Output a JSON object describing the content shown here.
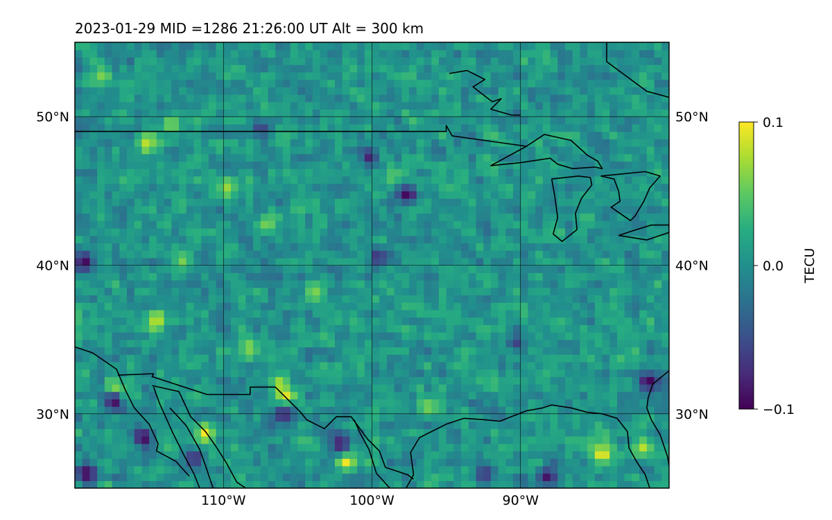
{
  "chart_data": {
    "type": "heatmap",
    "title": "2023-01-29  MID =1286    21:26:00  UT  Alt = 300 km",
    "xlabel": "",
    "ylabel": "",
    "xlim": [
      -120,
      -80
    ],
    "ylim": [
      25,
      55
    ],
    "x_ticks": [
      {
        "value": -110,
        "label": "110°W"
      },
      {
        "value": -100,
        "label": "100°W"
      },
      {
        "value": -90,
        "label": "90°W"
      }
    ],
    "y_ticks": [
      {
        "value": 30,
        "label": "30°N"
      },
      {
        "value": 40,
        "label": "40°N"
      },
      {
        "value": 50,
        "label": "50°N"
      }
    ],
    "grid": true,
    "colorbar": {
      "label": "TECU",
      "min": -0.1,
      "max": 0.1,
      "ticks": [
        {
          "value": 0.1,
          "label": "0.1"
        },
        {
          "value": 0.0,
          "label": "0.0"
        },
        {
          "value": -0.1,
          "label": "−0.1"
        }
      ],
      "colormap": [
        "#440154",
        "#472c7a",
        "#3b518b",
        "#2c718e",
        "#21908d",
        "#27ad81",
        "#5cc863",
        "#aadc32",
        "#fde725"
      ]
    },
    "grid_resolution_deg": 0.5,
    "hotspots": [
      {
        "lon": -117.3,
        "lat": 31.6,
        "value": 0.1
      },
      {
        "lon": -114.5,
        "lat": 36.4,
        "value": 0.09
      },
      {
        "lon": -111.2,
        "lat": 28.7,
        "value": 0.1
      },
      {
        "lon": -105.8,
        "lat": 31.1,
        "value": 0.1
      },
      {
        "lon": -106.2,
        "lat": 32.0,
        "value": 0.08
      },
      {
        "lon": -101.7,
        "lat": 26.9,
        "value": 0.1
      },
      {
        "lon": -84.5,
        "lat": 27.3,
        "value": 0.1
      },
      {
        "lon": -109.8,
        "lat": 45.2,
        "value": 0.07
      },
      {
        "lon": -115.2,
        "lat": 48.2,
        "value": 0.08
      },
      {
        "lon": -113.5,
        "lat": 49.5,
        "value": 0.07
      },
      {
        "lon": -108.3,
        "lat": 34.5,
        "value": 0.07
      },
      {
        "lon": -118.2,
        "lat": 52.8,
        "value": 0.06
      },
      {
        "lon": -112.8,
        "lat": 40.2,
        "value": 0.06
      },
      {
        "lon": -81.7,
        "lat": 27.8,
        "value": 0.08
      },
      {
        "lon": -96.2,
        "lat": 30.5,
        "value": 0.06
      },
      {
        "lon": -107.0,
        "lat": 42.8,
        "value": 0.06
      },
      {
        "lon": -103.8,
        "lat": 38.2,
        "value": 0.06
      },
      {
        "lon": -98.5,
        "lat": 46.0,
        "value": 0.05
      }
    ],
    "coldspots": [
      {
        "lon": -119.4,
        "lat": 40.2,
        "value": -0.1
      },
      {
        "lon": -115.4,
        "lat": 28.4,
        "value": -0.1
      },
      {
        "lon": -117.4,
        "lat": 30.9,
        "value": -0.1
      },
      {
        "lon": -119.2,
        "lat": 26.0,
        "value": -0.1
      },
      {
        "lon": -102.1,
        "lat": 28.0,
        "value": -0.09
      },
      {
        "lon": -106.0,
        "lat": 30.0,
        "value": -0.08
      },
      {
        "lon": -97.6,
        "lat": 44.8,
        "value": -0.1
      },
      {
        "lon": -100.2,
        "lat": 47.3,
        "value": -0.08
      },
      {
        "lon": -81.4,
        "lat": 32.2,
        "value": -0.1
      },
      {
        "lon": -88.2,
        "lat": 25.8,
        "value": -0.09
      },
      {
        "lon": -92.4,
        "lat": 26.0,
        "value": -0.07
      },
      {
        "lon": -112.0,
        "lat": 27.0,
        "value": -0.08
      },
      {
        "lon": -99.6,
        "lat": 40.6,
        "value": -0.07
      },
      {
        "lon": -107.5,
        "lat": 49.2,
        "value": -0.06
      },
      {
        "lon": -90.3,
        "lat": 34.8,
        "value": -0.06
      }
    ],
    "boundaries": {
      "us_canada_border": [
        [
          -120,
          49
        ],
        [
          -95,
          49
        ],
        [
          -95,
          49.4
        ],
        [
          -94.6,
          48.7
        ],
        [
          -89.6,
          48.0
        ]
      ],
      "hudson_bay_coast": [
        [
          -94.8,
          52.9
        ],
        [
          -93.6,
          53.1
        ],
        [
          -92.4,
          52.5
        ],
        [
          -93.2,
          52.0
        ],
        [
          -91.9,
          51.0
        ],
        [
          -91.3,
          51.2
        ],
        [
          -92.0,
          50.5
        ],
        [
          -90.6,
          50.1
        ],
        [
          -90.0,
          50.1
        ]
      ],
      "quebec_border": [
        [
          -84.2,
          55
        ],
        [
          -84.2,
          53.7
        ],
        [
          -81.5,
          51.7
        ],
        [
          -80,
          51.3
        ]
      ],
      "lake_superior": [
        [
          -89.6,
          48.0
        ],
        [
          -92.0,
          46.7
        ],
        [
          -90.0,
          46.9
        ],
        [
          -88.0,
          47.2
        ],
        [
          -87.5,
          46.8
        ],
        [
          -86.5,
          46.5
        ],
        [
          -85.0,
          46.6
        ],
        [
          -84.5,
          46.5
        ],
        [
          -84.8,
          47.0
        ],
        [
          -85.5,
          47.4
        ],
        [
          -86.6,
          48.4
        ],
        [
          -88.4,
          48.8
        ],
        [
          -89.6,
          48.0
        ]
      ],
      "lake_michigan": [
        [
          -87.9,
          45.8
        ],
        [
          -87.7,
          44.7
        ],
        [
          -87.5,
          43.2
        ],
        [
          -87.8,
          42.1
        ],
        [
          -87.2,
          41.6
        ],
        [
          -86.2,
          42.4
        ],
        [
          -86.3,
          43.5
        ],
        [
          -85.9,
          44.5
        ],
        [
          -85.2,
          45.4
        ],
        [
          -85.3,
          45.9
        ],
        [
          -86.1,
          46.0
        ],
        [
          -87.9,
          45.8
        ]
      ],
      "lake_huron": [
        [
          -84.6,
          46.0
        ],
        [
          -83.7,
          45.8
        ],
        [
          -83.4,
          45.0
        ],
        [
          -83.3,
          44.3
        ],
        [
          -83.9,
          43.9
        ],
        [
          -82.6,
          43.0
        ],
        [
          -82.3,
          43.3
        ],
        [
          -81.7,
          44.3
        ],
        [
          -81.3,
          45.2
        ],
        [
          -80.6,
          46.0
        ],
        [
          -81.6,
          46.3
        ],
        [
          -84.6,
          46.0
        ]
      ],
      "lake_erie": [
        [
          -83.4,
          42.0
        ],
        [
          -81.5,
          41.7
        ],
        [
          -80,
          42.2
        ],
        [
          -80,
          42.7
        ],
        [
          -81.2,
          42.7
        ],
        [
          -82.5,
          42.3
        ],
        [
          -83.4,
          42.0
        ]
      ],
      "us_mexico_border": [
        [
          -117.1,
          32.6
        ],
        [
          -114.7,
          32.7
        ],
        [
          -114.8,
          32.5
        ],
        [
          -111.1,
          31.3
        ],
        [
          -108.2,
          31.3
        ],
        [
          -108.2,
          31.8
        ],
        [
          -106.5,
          31.8
        ],
        [
          -104.8,
          30.1
        ],
        [
          -104.4,
          29.6
        ],
        [
          -103.2,
          29.0
        ],
        [
          -102.4,
          29.8
        ],
        [
          -101.4,
          29.8
        ],
        [
          -100.3,
          28.3
        ],
        [
          -99.5,
          27.5
        ],
        [
          -99.1,
          26.4
        ],
        [
          -97.6,
          25.9
        ],
        [
          -97.2,
          25.6
        ]
      ],
      "gulf_coast": [
        [
          -97.7,
          25
        ],
        [
          -97.2,
          25.9
        ],
        [
          -97.4,
          27.4
        ],
        [
          -96.8,
          28.4
        ],
        [
          -95.0,
          29.3
        ],
        [
          -93.8,
          29.7
        ],
        [
          -92.4,
          29.6
        ],
        [
          -91.4,
          29.5
        ],
        [
          -89.6,
          30.2
        ],
        [
          -88.5,
          30.4
        ],
        [
          -87.9,
          30.6
        ],
        [
          -86.6,
          30.4
        ],
        [
          -85.5,
          30.1
        ],
        [
          -84.5,
          30.0
        ],
        [
          -83.5,
          29.7
        ],
        [
          -82.8,
          28.8
        ],
        [
          -82.7,
          27.7
        ],
        [
          -82.2,
          26.8
        ],
        [
          -81.6,
          25.9
        ],
        [
          -81.3,
          25
        ]
      ],
      "atlantic_coast": [
        [
          -80,
          32.9
        ],
        [
          -81.1,
          32.0
        ],
        [
          -81.4,
          31.1
        ],
        [
          -81.5,
          30.4
        ],
        [
          -81.2,
          29.6
        ],
        [
          -80.6,
          28.6
        ],
        [
          -80.1,
          27.1
        ],
        [
          -80.0,
          26.5
        ]
      ],
      "baja_coast_outer": [
        [
          -120,
          34.5
        ],
        [
          -118.8,
          34.1
        ],
        [
          -117.2,
          33.0
        ],
        [
          -116.6,
          31.6
        ],
        [
          -116.0,
          30.4
        ],
        [
          -115.0,
          29.3
        ],
        [
          -114.4,
          28.0
        ],
        [
          -114.5,
          27.5
        ],
        [
          -113.2,
          26.8
        ],
        [
          -112.3,
          25.8
        ]
      ],
      "gulf_of_california": [
        [
          -114.7,
          31.8
        ],
        [
          -114.3,
          30.7
        ],
        [
          -113.4,
          28.7
        ],
        [
          -112.7,
          27.3
        ],
        [
          -112.0,
          26.0
        ],
        [
          -111.6,
          25
        ]
      ],
      "mexico_mainland_coast": [
        [
          -114.8,
          31.9
        ],
        [
          -113.0,
          31.5
        ],
        [
          -112.2,
          29.8
        ],
        [
          -111.2,
          28.8
        ],
        [
          -110.5,
          27.8
        ],
        [
          -109.8,
          26.7
        ],
        [
          -109.1,
          25.4
        ],
        [
          -108.5,
          25
        ]
      ],
      "sierra_madre_range": [
        [
          -113.6,
          30.4
        ],
        [
          -112.5,
          29.2
        ],
        [
          -111.6,
          27.6
        ],
        [
          -111.2,
          26.5
        ],
        [
          -110.7,
          25
        ]
      ],
      "texas_inland": [
        [
          -101.2,
          29.6
        ],
        [
          -100.8,
          28.7
        ],
        [
          -100.2,
          27.6
        ],
        [
          -99.7,
          26.0
        ],
        [
          -98.8,
          25
        ]
      ]
    }
  }
}
